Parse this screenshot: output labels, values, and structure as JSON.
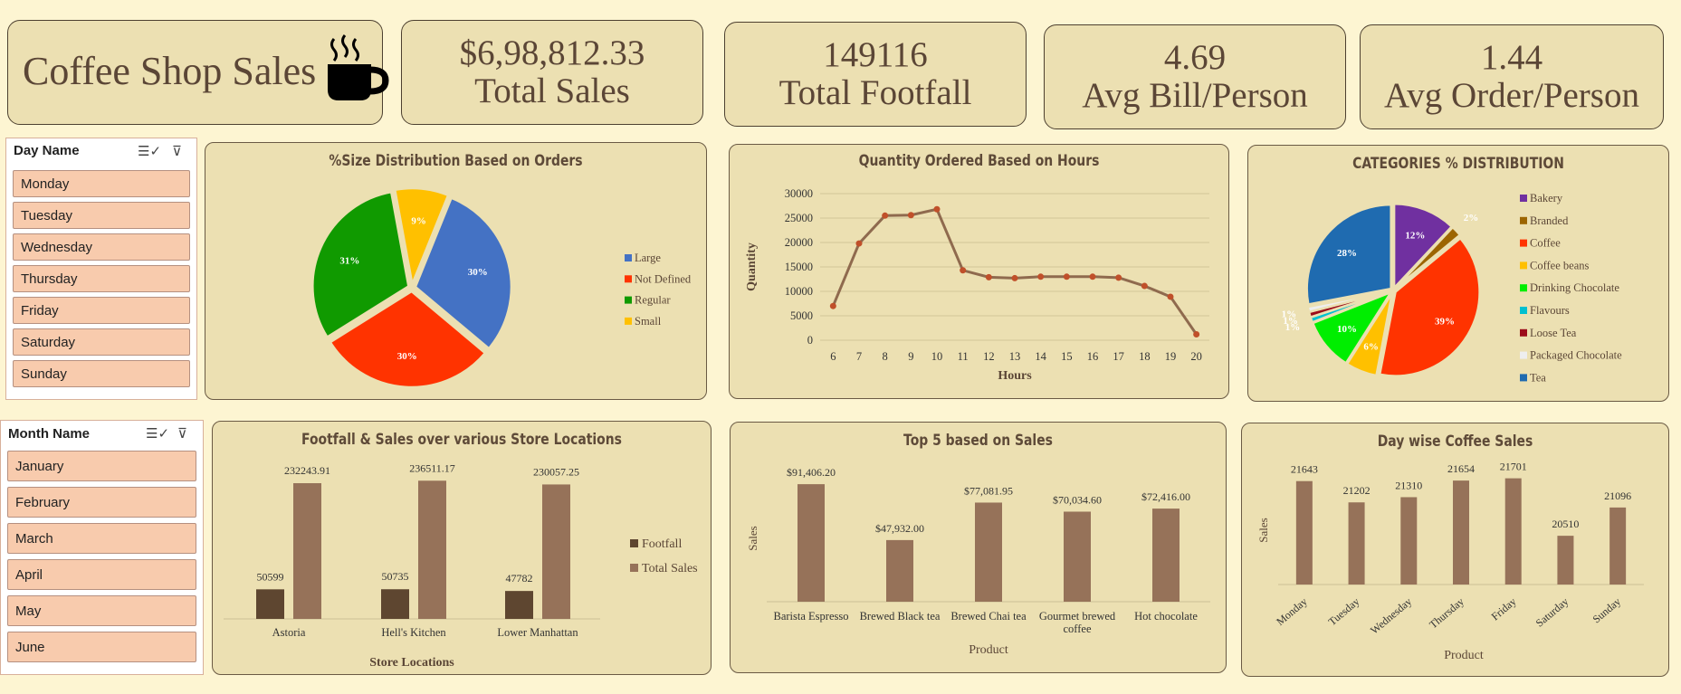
{
  "dashboard": {
    "title": "Coffee Shop Sales",
    "logo_icon": "coffee-cup-icon"
  },
  "kpis": [
    {
      "value": "$6,98,812.33",
      "label": "Total Sales"
    },
    {
      "value": "149116",
      "label": "Total Footfall"
    },
    {
      "value": "4.69",
      "label": "Avg Bill/Person"
    },
    {
      "value": "1.44",
      "label": "Avg Order/Person"
    }
  ],
  "day_slicer": {
    "title": "Day Name",
    "items": [
      "Monday",
      "Tuesday",
      "Wednesday",
      "Thursday",
      "Friday",
      "Saturday",
      "Sunday"
    ]
  },
  "month_slicer": {
    "title": "Month Name",
    "items": [
      "January",
      "February",
      "March",
      "April",
      "May",
      "June"
    ]
  },
  "charts": {
    "size": {
      "title": "%Size Distribution Based on Orders"
    },
    "hours": {
      "title": "Quantity Ordered Based on Hours"
    },
    "categories": {
      "title": "CATEGORIES % DISTRIBUTION"
    },
    "stores": {
      "title": "Footfall & Sales over various Store Locations"
    },
    "top5": {
      "title": "Top 5 based on Sales"
    },
    "daywise": {
      "title": "Day wise Coffee Sales"
    }
  },
  "chart_data": [
    {
      "id": "size",
      "type": "pie",
      "title": "%Size Distribution Based on Orders",
      "slices": [
        {
          "name": "Large",
          "value": 30,
          "label": "30%",
          "color": "#4472c4"
        },
        {
          "name": "Not Defined",
          "value": 30,
          "label": "30%",
          "color": "#ff3300"
        },
        {
          "name": "Regular",
          "value": 31,
          "label": "31%",
          "color": "#109a00"
        },
        {
          "name": "Small",
          "value": 9,
          "label": "9%",
          "color": "#ffc000"
        }
      ],
      "legend": "right"
    },
    {
      "id": "hours",
      "type": "line",
      "title": "Quantity Ordered Based on Hours",
      "xlabel": "Hours",
      "ylabel": "Quantity",
      "x": [
        6,
        7,
        8,
        9,
        10,
        11,
        12,
        13,
        14,
        15,
        16,
        17,
        18,
        19,
        20
      ],
      "y": [
        7000,
        19800,
        25500,
        25600,
        26800,
        14300,
        12900,
        12700,
        13000,
        13000,
        13000,
        12800,
        11100,
        8900,
        1200
      ],
      "ylim": [
        0,
        30000
      ],
      "yticks": [
        0,
        5000,
        10000,
        15000,
        20000,
        25000,
        30000
      ],
      "grid": true,
      "color": "#8f6a4e"
    },
    {
      "id": "categories",
      "type": "pie",
      "title": "CATEGORIES % DISTRIBUTION",
      "slices": [
        {
          "name": "Bakery",
          "value": 12,
          "label": "12%",
          "color": "#7030a0"
        },
        {
          "name": "Branded",
          "value": 2,
          "label": "2%",
          "color": "#9c6500"
        },
        {
          "name": "Coffee",
          "value": 39,
          "label": "39%",
          "color": "#ff3300"
        },
        {
          "name": "Coffee beans",
          "value": 6,
          "label": "6%",
          "color": "#ffc000"
        },
        {
          "name": "Drinking Chocolate",
          "value": 10,
          "label": "10%",
          "color": "#00ee00"
        },
        {
          "name": "Flavours",
          "value": 1,
          "label": "1%",
          "color": "#00c0d0"
        },
        {
          "name": "Loose Tea",
          "value": 1,
          "label": "1%",
          "color": "#9c0c1a"
        },
        {
          "name": "Packaged Chocolate",
          "value": 1,
          "label": "1%",
          "color": "#eeeeee"
        },
        {
          "name": "Tea",
          "value": 28,
          "label": "28%",
          "color": "#1f6bb0"
        }
      ],
      "legend": "right"
    },
    {
      "id": "stores",
      "type": "bar",
      "title": "Footfall & Sales over various Store Locations",
      "xlabel": "Store Locations",
      "categories": [
        "Astoria",
        "Hell's Kitchen",
        "Lower Manhattan"
      ],
      "series": [
        {
          "name": "Footfall",
          "values": [
            50599,
            50735,
            47782
          ],
          "labels": [
            "50599",
            "50735",
            "47782"
          ],
          "color": "#5e4630"
        },
        {
          "name": "Total Sales",
          "values": [
            232243.91,
            236511.17,
            230057.25
          ],
          "labels": [
            "232243.91",
            "236511.17",
            "230057.25"
          ],
          "color": "#967259"
        }
      ],
      "ylim": [
        0,
        240000
      ],
      "legend": "right"
    },
    {
      "id": "top5",
      "type": "bar",
      "title": "Top 5 based on Sales",
      "xlabel": "Product",
      "ylabel": "Sales",
      "categories": [
        "Barista Espresso",
        "Brewed Black tea",
        "Brewed Chai tea",
        "Gourmet brewed coffee",
        "Hot chocolate"
      ],
      "values": [
        91406.2,
        47932.0,
        77081.95,
        70034.6,
        72416.0
      ],
      "value_labels": [
        "$91,406.20",
        "$47,932.00",
        "$77,081.95",
        "$70,034.60",
        "$72,416.00"
      ],
      "ylim": [
        0,
        95000
      ],
      "color": "#967259"
    },
    {
      "id": "daywise",
      "type": "bar",
      "title": "Day wise Coffee Sales",
      "xlabel": "Product",
      "ylabel": "Sales",
      "categories": [
        "Monday",
        "Tuesday",
        "Wednesday",
        "Thursday",
        "Friday",
        "Saturday",
        "Sunday"
      ],
      "values": [
        21643,
        21202,
        21310,
        21654,
        21701,
        20510,
        21096
      ],
      "value_labels": [
        "21643",
        "21202",
        "21310",
        "21654",
        "21701",
        "20510",
        "21096"
      ],
      "ylim": [
        19500,
        21900
      ],
      "color": "#967259"
    }
  ]
}
